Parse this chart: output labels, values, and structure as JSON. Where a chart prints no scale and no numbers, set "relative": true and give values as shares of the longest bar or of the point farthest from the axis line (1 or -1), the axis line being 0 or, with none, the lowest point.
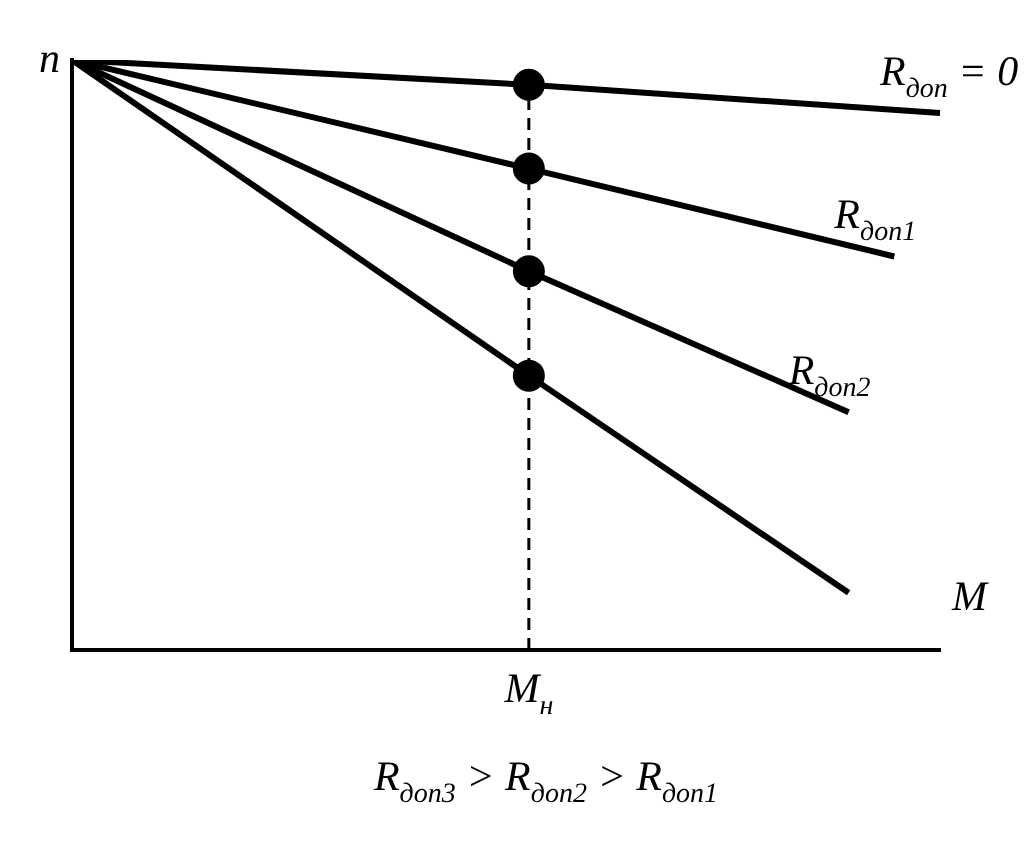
{
  "chart_data": {
    "type": "line",
    "relative": true,
    "tick_labels": false,
    "grid": false,
    "legend": false,
    "xlabel": "M",
    "ylabel": "n",
    "categories": [
      null,
      null,
      null,
      null,
      null,
      null,
      null,
      null,
      null,
      null,
      null,
      null,
      null,
      null,
      null,
      null,
      null,
      null,
      null,
      null
    ],
    "series": [
      {
        "name": "R$_{доп}$ = 0",
        "color": "#000000",
        "values": [
          1,
          null,
          null,
          null,
          null,
          null,
          null,
          null,
          null,
          null,
          0.958,
          null,
          null,
          null,
          null,
          null,
          null,
          null,
          null,
          0.91
        ]
      },
      {
        "name": "R$_{доп1}$",
        "color": "#000000",
        "values": [
          1,
          null,
          null,
          null,
          null,
          null,
          null,
          null,
          null,
          null,
          0.816,
          null,
          null,
          null,
          null,
          null,
          null,
          null,
          0.667,
          null
        ]
      },
      {
        "name": "R$_{доп2}$",
        "color": "#000000",
        "values": [
          1,
          null,
          null,
          null,
          null,
          null,
          null,
          null,
          null,
          null,
          0.642,
          null,
          null,
          null,
          null,
          null,
          null,
          0.403,
          null,
          null
        ]
      },
      {
        "color": "#000000",
        "values": [
          1,
          null,
          null,
          null,
          null,
          null,
          null,
          null,
          null,
          null,
          0.465,
          null,
          null,
          null,
          null,
          null,
          null,
          0.097,
          null,
          null
        ]
      }
    ],
    "annotations": [
      {
        "text": "M$_{н}$"
      },
      "R$_{доп3}$ > R$_{доп2}$ > R$_{доп1}$"
    ]
  }
}
